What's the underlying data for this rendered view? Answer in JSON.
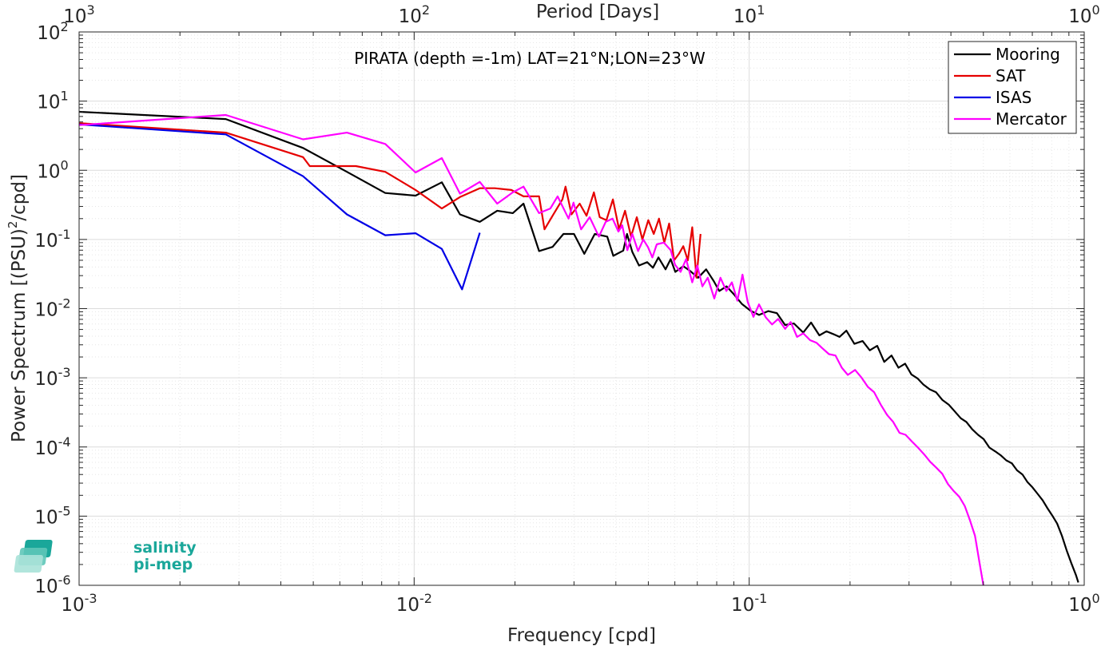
{
  "chart_data": {
    "type": "line",
    "title": "PIRATA (depth =-1m) LAT=21°N;LON=23°W",
    "xlabel": "Frequency [cpd]",
    "ylabel_main": "Power Spectrum [(PSU)",
    "ylabel_sup": "2",
    "ylabel_tail": "/cpd]",
    "top_xlabel": "Period [Days]",
    "xscale": "log",
    "yscale": "log",
    "xlim": [
      0.001,
      1
    ],
    "ylim": [
      1e-06,
      100
    ],
    "grid": true,
    "legend_position": "top-right",
    "x_ticks": [
      {
        "value": 0.001,
        "base": "10",
        "exp": "-3"
      },
      {
        "value": 0.01,
        "base": "10",
        "exp": "-2"
      },
      {
        "value": 0.1,
        "base": "10",
        "exp": "-1"
      },
      {
        "value": 1,
        "base": "10",
        "exp": "0"
      }
    ],
    "y_ticks": [
      {
        "value": 1e-06,
        "base": "10",
        "exp": "-6"
      },
      {
        "value": 1e-05,
        "base": "10",
        "exp": "-5"
      },
      {
        "value": 0.0001,
        "base": "10",
        "exp": "-4"
      },
      {
        "value": 0.001,
        "base": "10",
        "exp": "-3"
      },
      {
        "value": 0.01,
        "base": "10",
        "exp": "-2"
      },
      {
        "value": 0.1,
        "base": "10",
        "exp": "-1"
      },
      {
        "value": 1,
        "base": "10",
        "exp": "0"
      },
      {
        "value": 10,
        "base": "10",
        "exp": "1"
      },
      {
        "value": 100,
        "base": "10",
        "exp": "2"
      }
    ],
    "top_ticks": [
      {
        "freq": 0.001,
        "base": "10",
        "exp": "3"
      },
      {
        "freq": 0.01,
        "base": "10",
        "exp": "2"
      },
      {
        "freq": 0.1,
        "base": "10",
        "exp": "1"
      },
      {
        "freq": 1,
        "base": "10",
        "exp": "0"
      }
    ],
    "series": [
      {
        "name": "Mooring",
        "color": "#000000",
        "points": [
          [
            0.001,
            7.0
          ],
          [
            0.00274,
            5.5
          ],
          [
            0.00466,
            2.1
          ],
          [
            0.0063,
            0.95
          ],
          [
            0.0082,
            0.47
          ],
          [
            0.0101,
            0.43
          ],
          [
            0.0121,
            0.67
          ],
          [
            0.0137,
            0.23
          ],
          [
            0.0157,
            0.18
          ],
          [
            0.0177,
            0.26
          ],
          [
            0.0197,
            0.24
          ],
          [
            0.0212,
            0.33
          ],
          [
            0.0236,
            0.068
          ],
          [
            0.0259,
            0.078
          ],
          [
            0.0279,
            0.12
          ],
          [
            0.03,
            0.12
          ],
          [
            0.0322,
            0.062
          ],
          [
            0.0346,
            0.12
          ],
          [
            0.0377,
            0.11
          ],
          [
            0.0393,
            0.058
          ],
          [
            0.0421,
            0.069
          ],
          [
            0.0432,
            0.12
          ],
          [
            0.0448,
            0.066
          ],
          [
            0.0469,
            0.042
          ],
          [
            0.0496,
            0.047
          ],
          [
            0.0516,
            0.039
          ],
          [
            0.0536,
            0.055
          ],
          [
            0.0563,
            0.037
          ],
          [
            0.0583,
            0.052
          ],
          [
            0.0602,
            0.034
          ],
          [
            0.0636,
            0.041
          ],
          [
            0.0667,
            0.035
          ],
          [
            0.0704,
            0.028
          ],
          [
            0.0744,
            0.037
          ],
          [
            0.0784,
            0.025
          ],
          [
            0.0814,
            0.018
          ],
          [
            0.0856,
            0.021
          ],
          [
            0.0901,
            0.016
          ],
          [
            0.0951,
            0.0117
          ],
          [
            0.101,
            0.0093
          ],
          [
            0.107,
            0.0081
          ],
          [
            0.114,
            0.0092
          ],
          [
            0.121,
            0.0086
          ],
          [
            0.128,
            0.0058
          ],
          [
            0.136,
            0.0061
          ],
          [
            0.145,
            0.0045
          ],
          [
            0.153,
            0.0063
          ],
          [
            0.162,
            0.0041
          ],
          [
            0.17,
            0.0047
          ],
          [
            0.178,
            0.0043
          ],
          [
            0.186,
            0.0039
          ],
          [
            0.195,
            0.0048
          ],
          [
            0.206,
            0.0031
          ],
          [
            0.218,
            0.0034
          ],
          [
            0.229,
            0.0025
          ],
          [
            0.241,
            0.0029
          ],
          [
            0.253,
            0.0017
          ],
          [
            0.266,
            0.0021
          ],
          [
            0.279,
            0.0014
          ],
          [
            0.292,
            0.0016
          ],
          [
            0.305,
            0.00112
          ],
          [
            0.318,
            0.00098
          ],
          [
            0.331,
            0.0008
          ],
          [
            0.346,
            0.00068
          ],
          [
            0.361,
            0.00062
          ],
          [
            0.377,
            0.00048
          ],
          [
            0.394,
            0.00041
          ],
          [
            0.41,
            0.00033
          ],
          [
            0.428,
            0.00026
          ],
          [
            0.445,
            0.00023
          ],
          [
            0.463,
            0.00018
          ],
          [
            0.482,
            0.00015
          ],
          [
            0.501,
            0.00013
          ],
          [
            0.521,
            9.8e-05
          ],
          [
            0.543,
            8.6e-05
          ],
          [
            0.563,
            7.6e-05
          ],
          [
            0.585,
            6.4e-05
          ],
          [
            0.608,
            5.8e-05
          ],
          [
            0.63,
            4.6e-05
          ],
          [
            0.654,
            4e-05
          ],
          [
            0.677,
            3.1e-05
          ],
          [
            0.701,
            2.6e-05
          ],
          [
            0.726,
            2.1e-05
          ],
          [
            0.751,
            1.7e-05
          ],
          [
            0.777,
            1.3e-05
          ],
          [
            0.803,
            1.02e-05
          ],
          [
            0.83,
            7.8e-06
          ],
          [
            0.858,
            5.2e-06
          ],
          [
            0.886,
            3.2e-06
          ],
          [
            0.915,
            2.1e-06
          ],
          [
            0.945,
            1.4e-06
          ],
          [
            0.96,
            1.1e-06
          ]
        ]
      },
      {
        "name": "SAT",
        "color": "#e60000",
        "points": [
          [
            0.001,
            4.8
          ],
          [
            0.00274,
            3.5
          ],
          [
            0.00466,
            1.55
          ],
          [
            0.00488,
            1.15
          ],
          [
            0.0067,
            1.15
          ],
          [
            0.0082,
            0.95
          ],
          [
            0.0101,
            0.52
          ],
          [
            0.0121,
            0.28
          ],
          [
            0.0137,
            0.41
          ],
          [
            0.0157,
            0.55
          ],
          [
            0.0174,
            0.55
          ],
          [
            0.0195,
            0.52
          ],
          [
            0.0212,
            0.42
          ],
          [
            0.0236,
            0.42
          ],
          [
            0.0245,
            0.14
          ],
          [
            0.0259,
            0.22
          ],
          [
            0.0277,
            0.38
          ],
          [
            0.0283,
            0.58
          ],
          [
            0.0295,
            0.23
          ],
          [
            0.0312,
            0.33
          ],
          [
            0.0327,
            0.22
          ],
          [
            0.0344,
            0.48
          ],
          [
            0.0358,
            0.21
          ],
          [
            0.0375,
            0.19
          ],
          [
            0.0392,
            0.38
          ],
          [
            0.0409,
            0.14
          ],
          [
            0.0426,
            0.26
          ],
          [
            0.0444,
            0.11
          ],
          [
            0.0462,
            0.21
          ],
          [
            0.048,
            0.1
          ],
          [
            0.05,
            0.19
          ],
          [
            0.0519,
            0.12
          ],
          [
            0.0538,
            0.2
          ],
          [
            0.0558,
            0.09
          ],
          [
            0.0577,
            0.17
          ],
          [
            0.0597,
            0.05
          ],
          [
            0.0617,
            0.062
          ],
          [
            0.0636,
            0.08
          ],
          [
            0.0656,
            0.05
          ],
          [
            0.0676,
            0.15
          ],
          [
            0.0696,
            0.028
          ],
          [
            0.0716,
            0.12
          ]
        ]
      },
      {
        "name": "ISAS",
        "color": "#0000e6",
        "points": [
          [
            0.001,
            4.6
          ],
          [
            0.00274,
            3.3
          ],
          [
            0.00466,
            0.82
          ],
          [
            0.0063,
            0.23
          ],
          [
            0.0082,
            0.115
          ],
          [
            0.0101,
            0.123
          ],
          [
            0.0121,
            0.073
          ],
          [
            0.0139,
            0.019
          ],
          [
            0.0157,
            0.125
          ]
        ]
      },
      {
        "name": "Mercator",
        "color": "#ff00ff",
        "points": [
          [
            0.001,
            4.5
          ],
          [
            0.00274,
            6.3
          ],
          [
            0.00466,
            2.8
          ],
          [
            0.0063,
            3.5
          ],
          [
            0.0082,
            2.4
          ],
          [
            0.0101,
            0.93
          ],
          [
            0.0121,
            1.5
          ],
          [
            0.0137,
            0.46
          ],
          [
            0.0157,
            0.68
          ],
          [
            0.0177,
            0.33
          ],
          [
            0.0197,
            0.48
          ],
          [
            0.0212,
            0.58
          ],
          [
            0.0236,
            0.24
          ],
          [
            0.0255,
            0.28
          ],
          [
            0.0268,
            0.42
          ],
          [
            0.0289,
            0.2
          ],
          [
            0.0299,
            0.34
          ],
          [
            0.0315,
            0.14
          ],
          [
            0.0334,
            0.21
          ],
          [
            0.0356,
            0.11
          ],
          [
            0.0373,
            0.18
          ],
          [
            0.0391,
            0.2
          ],
          [
            0.0407,
            0.13
          ],
          [
            0.0418,
            0.16
          ],
          [
            0.0433,
            0.07
          ],
          [
            0.0448,
            0.12
          ],
          [
            0.0466,
            0.068
          ],
          [
            0.0483,
            0.1
          ],
          [
            0.0499,
            0.077
          ],
          [
            0.0514,
            0.055
          ],
          [
            0.053,
            0.085
          ],
          [
            0.0556,
            0.09
          ],
          [
            0.0583,
            0.07
          ],
          [
            0.0601,
            0.043
          ],
          [
            0.0624,
            0.034
          ],
          [
            0.0648,
            0.052
          ],
          [
            0.0676,
            0.024
          ],
          [
            0.07,
            0.042
          ],
          [
            0.0725,
            0.021
          ],
          [
            0.0752,
            0.028
          ],
          [
            0.0787,
            0.014
          ],
          [
            0.0821,
            0.028
          ],
          [
            0.0855,
            0.018
          ],
          [
            0.0888,
            0.024
          ],
          [
            0.0922,
            0.013
          ],
          [
            0.0955,
            0.031
          ],
          [
            0.099,
            0.0125
          ],
          [
            0.103,
            0.0076
          ],
          [
            0.107,
            0.0115
          ],
          [
            0.112,
            0.0075
          ],
          [
            0.117,
            0.0059
          ],
          [
            0.122,
            0.0071
          ],
          [
            0.128,
            0.0051
          ],
          [
            0.133,
            0.0064
          ],
          [
            0.139,
            0.0039
          ],
          [
            0.145,
            0.0044
          ],
          [
            0.152,
            0.0035
          ],
          [
            0.159,
            0.0032
          ],
          [
            0.165,
            0.0027
          ],
          [
            0.173,
            0.0022
          ],
          [
            0.181,
            0.0021
          ],
          [
            0.189,
            0.0014
          ],
          [
            0.197,
            0.0011
          ],
          [
            0.207,
            0.0013
          ],
          [
            0.216,
            0.00102
          ],
          [
            0.226,
            0.00074
          ],
          [
            0.236,
            0.00062
          ],
          [
            0.247,
            0.00041
          ],
          [
            0.258,
            0.00029
          ],
          [
            0.269,
            0.00023
          ],
          [
            0.281,
            0.00016
          ],
          [
            0.293,
            0.00015
          ],
          [
            0.306,
            0.00012
          ],
          [
            0.319,
            9.8e-05
          ],
          [
            0.333,
            7.8e-05
          ],
          [
            0.347,
            6.1e-05
          ],
          [
            0.362,
            5e-05
          ],
          [
            0.377,
            4.1e-05
          ],
          [
            0.392,
            2.9e-05
          ],
          [
            0.408,
            2.3e-05
          ],
          [
            0.424,
            1.9e-05
          ],
          [
            0.44,
            1.4e-05
          ],
          [
            0.456,
            8.7e-06
          ],
          [
            0.472,
            5.2e-06
          ],
          [
            0.487,
            2.1e-06
          ],
          [
            0.5,
            1e-06
          ]
        ]
      }
    ]
  },
  "logo": {
    "line1": "salinity",
    "line2": "pi-mep"
  }
}
